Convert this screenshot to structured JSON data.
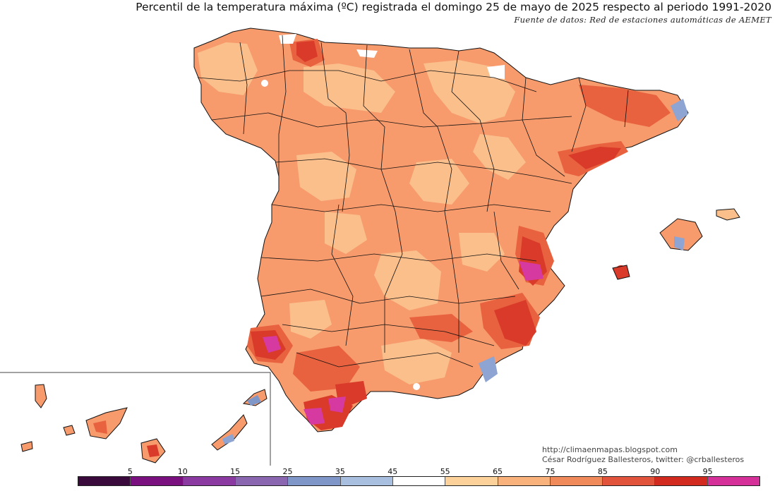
{
  "title": "Percentil de la temperatura máxima (ºC) registrada el domingo 25 de mayo de 2025 respecto al periodo 1991-2020",
  "source": "Fuente de datos: Red de estaciones automáticas de AEMET",
  "credits": {
    "blog": "http://climaenmapas.blogspot.com",
    "author": "César Rodríguez Ballesteros, twitter: @crballesteros"
  },
  "legend": {
    "tick_labels": [
      "5",
      "10",
      "15",
      "25",
      "35",
      "45",
      "55",
      "65",
      "75",
      "85",
      "90",
      "95"
    ],
    "colors": [
      "#3a0a3c",
      "#7a1080",
      "#8a3aa0",
      "#8a66b0",
      "#7f96c8",
      "#a9bfe0",
      "#ffffff",
      "#fcd29a",
      "#f9b27c",
      "#f08a5a",
      "#e2533c",
      "#d22a1e",
      "#d5309a"
    ]
  },
  "map_colors": {
    "base": "#f79a6c",
    "light": "#fbbf8c",
    "dark": "#e8623f",
    "red": "#d93a2a",
    "magenta": "#d63aa0",
    "blue": "#8ea5d4",
    "white": "#ffffff",
    "border": "#111111"
  }
}
